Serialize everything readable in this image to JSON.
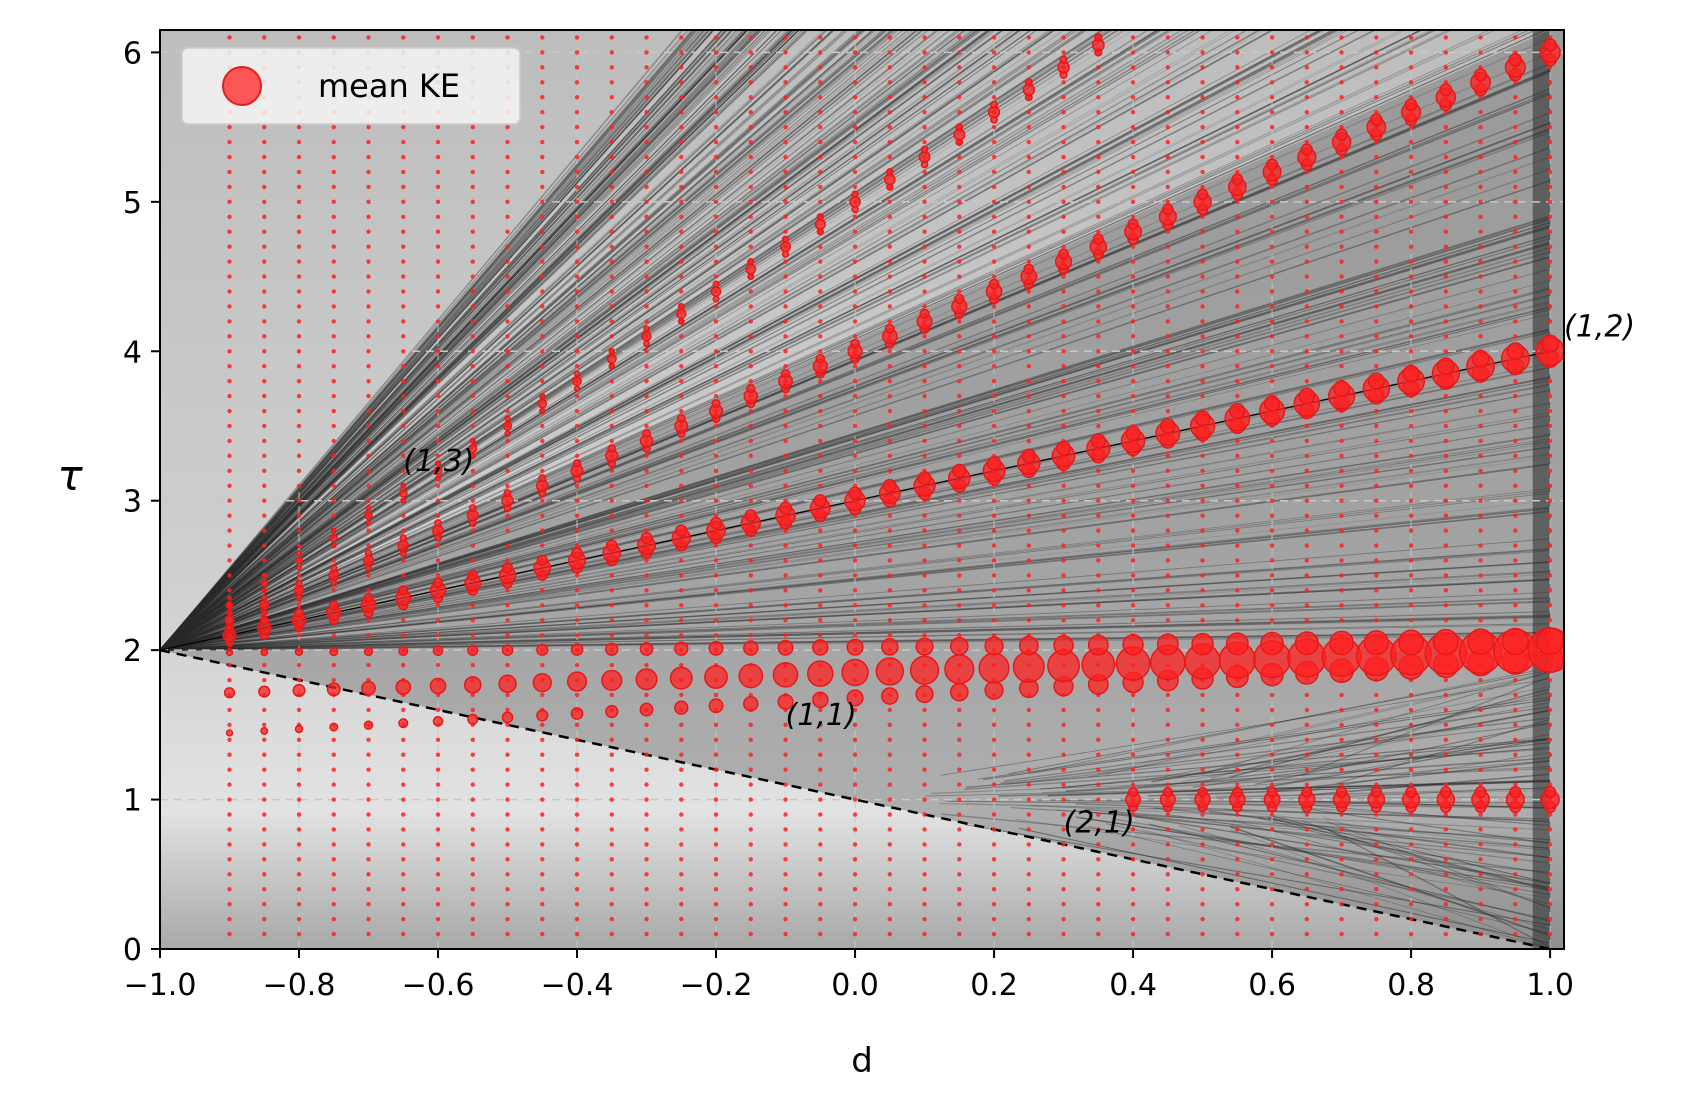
{
  "chart_data": {
    "type": "scatter",
    "title": "",
    "xlabel": "d",
    "ylabel": "τ",
    "xlim": [
      -1.0,
      1.02
    ],
    "ylim": [
      0,
      6.15
    ],
    "xticks": [
      "−1.0",
      "−0.8",
      "−0.6",
      "−0.4",
      "−0.2",
      "0.0",
      "0.2",
      "0.4",
      "0.6",
      "0.8",
      "1.0"
    ],
    "xtick_values": [
      -1.0,
      -0.8,
      -0.6,
      -0.4,
      -0.2,
      0.0,
      0.2,
      0.4,
      0.6,
      0.8,
      1.0
    ],
    "yticks": [
      "0",
      "1",
      "2",
      "3",
      "4",
      "5",
      "6"
    ],
    "ytick_values": [
      0,
      1,
      2,
      3,
      4,
      5,
      6
    ],
    "grid": true,
    "legend": {
      "position": "top-left",
      "entries": [
        "mean KE"
      ]
    },
    "marker_color": "#ff2020",
    "background_colors": {
      "shade_light": "#d8d8d8",
      "shade_dark": "#9a9a9a",
      "fan_lines": "#2a2a2a"
    },
    "series": [
      {
        "name": "mean KE",
        "d_values": [
          -0.9,
          -0.85,
          -0.8,
          -0.75,
          -0.7,
          -0.65,
          -0.6,
          -0.55,
          -0.5,
          -0.45,
          -0.4,
          -0.35,
          -0.3,
          -0.25,
          -0.2,
          -0.15,
          -0.1,
          -0.05,
          0.0,
          0.05,
          0.1,
          0.15,
          0.2,
          0.25,
          0.3,
          0.35,
          0.4,
          0.45,
          0.5,
          0.55,
          0.6,
          0.65,
          0.7,
          0.75,
          0.8,
          0.85,
          0.9,
          0.95,
          1.0
        ],
        "tau_range": [
          0.1,
          6.1
        ],
        "tau_step": 0.1,
        "branches": [
          {
            "label": "(1,1)",
            "tau_at_d_minus1": 2.0,
            "tau_at_d1": 2.0,
            "size_at_d_minus1": 4,
            "size_at_d1": 22
          },
          {
            "label": "(1,2)",
            "tau_at_d_minus1": 2.0,
            "tau_at_d1": 4.0,
            "size_at_d_minus1": 6,
            "size_at_d1": 14
          },
          {
            "label": "(1,3)",
            "tau_at_d_minus1": 2.0,
            "tau_at_d1": 6.0,
            "size_at_d_minus1": 4,
            "size_at_d1": 10
          },
          {
            "label": "",
            "tau_at_d_minus1": 2.0,
            "tau_at_d1": 8.0,
            "size_at_d_minus1": 3,
            "size_at_d1": 7
          },
          {
            "label": "(2,1)",
            "tau_at_d_minus1": 1.0,
            "tau_at_d1": 1.0,
            "d_start": 0.4,
            "size_at_d_minus1": 3,
            "size_at_d1": 9
          }
        ]
      }
    ],
    "reference_lines": [
      {
        "style": "solid",
        "from": [
          -1.0,
          2.0
        ],
        "to": [
          1.0,
          4.0
        ]
      },
      {
        "style": "dashed",
        "from": [
          -1.0,
          2.0
        ],
        "to": [
          1.0,
          0.0
        ]
      }
    ],
    "annotations": [
      {
        "text": "(1,2)",
        "d": 1.02,
        "tau": 4.1
      },
      {
        "text": "(1,3)",
        "d": -0.65,
        "tau": 3.2
      },
      {
        "text": "(1,1)",
        "d": -0.1,
        "tau": 1.5
      },
      {
        "text": "(2,1)",
        "d": 0.3,
        "tau": 0.78
      }
    ]
  }
}
